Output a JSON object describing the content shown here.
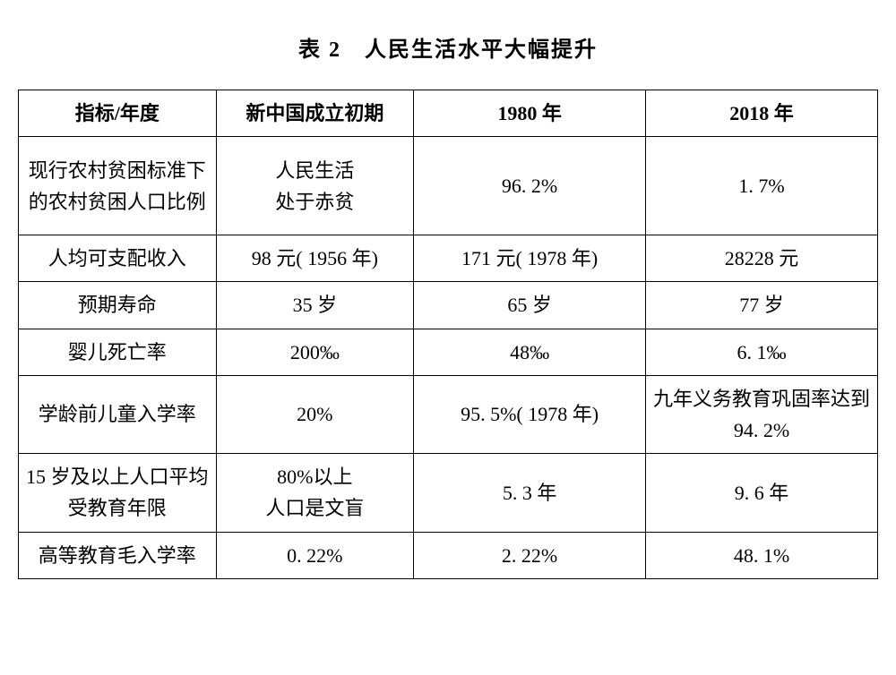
{
  "title": "表 2　人民生活水平大幅提升",
  "table": {
    "type": "table",
    "border_color": "#000000",
    "background_color": "#ffffff",
    "text_color": "#000000",
    "font_family": "SimSun",
    "header_fontsize": 22,
    "cell_fontsize": 22,
    "header_fontweight": "bold",
    "columns": [
      {
        "label": "指标/年度",
        "width_pct": 23,
        "align": "center"
      },
      {
        "label": "新中国成立初期",
        "width_pct": 23,
        "align": "center"
      },
      {
        "label": "1980 年",
        "width_pct": 27,
        "align": "center"
      },
      {
        "label": "2018 年",
        "width_pct": 27,
        "align": "center"
      }
    ],
    "rows": [
      {
        "height_class": "tall-row",
        "cells": [
          "现行农村贫困标准下的农村贫困人口比例",
          "人民生活\n处于赤贫",
          "96. 2%",
          "1. 7%"
        ]
      },
      {
        "height_class": "short-row",
        "cells": [
          "人均可支配收入",
          "98 元( 1956 年)",
          "171 元( 1978 年)",
          "28228 元"
        ]
      },
      {
        "height_class": "short-row",
        "cells": [
          "预期寿命",
          "35 岁",
          "65 岁",
          "77 岁"
        ]
      },
      {
        "height_class": "short-row",
        "cells": [
          "婴儿死亡率",
          "200‰",
          "48‰",
          "6. 1‰"
        ]
      },
      {
        "height_class": "med-row",
        "cells": [
          "学龄前儿童入学率",
          "20%",
          "95. 5%( 1978 年)",
          "九年义务教育巩固率达到 94. 2%"
        ]
      },
      {
        "height_class": "med-row",
        "cells": [
          "15 岁及以上人口平均受教育年限",
          "80%以上\n人口是文盲",
          "5. 3 年",
          "9. 6 年"
        ]
      },
      {
        "height_class": "short-row",
        "cells": [
          "高等教育毛入学率",
          "0. 22%",
          "2. 22%",
          "48. 1%"
        ]
      }
    ]
  }
}
